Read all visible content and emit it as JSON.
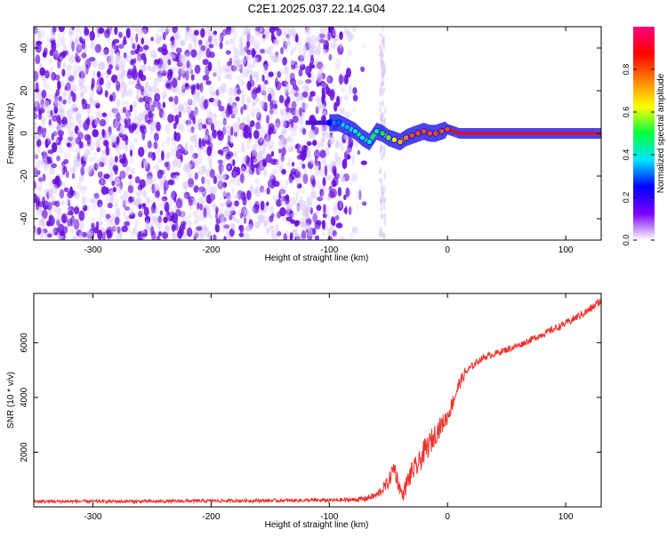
{
  "title": "C2E1.2025.037.22.14.G04",
  "colors": {
    "signal_line": "#f0302a",
    "frame": "#000000",
    "noise_dark": "#6a0fdc",
    "noise_light": "#d8c6f8"
  },
  "chart_data": [
    {
      "id": "spectrogram",
      "type": "heatmap",
      "title": "",
      "xlabel": "Height of straight line (km)",
      "ylabel": "Frequency (Hz)",
      "xlim": [
        -350,
        130
      ],
      "ylim": [
        -50,
        50
      ],
      "xticks": [
        -300,
        -200,
        -100,
        0,
        100
      ],
      "yticks": [
        -40,
        -20,
        0,
        20,
        40
      ],
      "colorbar": {
        "label": "Normalized spectral amplitude",
        "range": [
          0.0,
          1.0
        ],
        "ticks": [
          0.0,
          0.2,
          0.4,
          0.6,
          0.8
        ],
        "tick_labels": [
          "0.0",
          "0.2",
          "0.4",
          "0.6",
          "0.8"
        ],
        "colormap": [
          "#ffffff",
          "#7a00ff",
          "#0000ff",
          "#00e5ff",
          "#00ff40",
          "#ffff00",
          "#ff8000",
          "#ff0000",
          "#ff0080"
        ]
      },
      "noise_region_x": [
        -350,
        -75
      ],
      "ridge": {
        "x": [
          -100,
          -92,
          -85,
          -78,
          -72,
          -66,
          -60,
          -55,
          -50,
          -45,
          -40,
          -35,
          -30,
          -25,
          -20,
          -15,
          -10,
          -5,
          0,
          10,
          30,
          60,
          90,
          130
        ],
        "y": [
          5,
          5,
          3,
          1,
          -2,
          -4,
          1,
          0,
          -2,
          -3,
          -4,
          -2,
          -1,
          0,
          1,
          0,
          0,
          1,
          2,
          0,
          0,
          0,
          0,
          0
        ],
        "amplitude": [
          0.3,
          0.35,
          0.4,
          0.45,
          0.45,
          0.45,
          0.5,
          0.55,
          0.6,
          0.7,
          0.75,
          0.8,
          0.85,
          0.85,
          0.85,
          0.85,
          0.85,
          0.85,
          0.85,
          0.9,
          0.9,
          0.9,
          0.9,
          0.9
        ]
      }
    },
    {
      "id": "snr",
      "type": "line",
      "title": "",
      "xlabel": "Height of straight line (km)",
      "ylabel": "SNR (10 * v/v)",
      "xlim": [
        -350,
        130
      ],
      "ylim": [
        0,
        7800
      ],
      "xticks": [
        -300,
        -200,
        -100,
        0,
        100
      ],
      "yticks": [
        2000,
        4000,
        6000
      ],
      "series": [
        {
          "x": [
            -350,
            -300,
            -250,
            -200,
            -150,
            -100,
            -80,
            -70,
            -60,
            -55,
            -50,
            -45,
            -42,
            -38,
            -35,
            -30,
            -25,
            -20,
            -15,
            -10,
            -5,
            0,
            5,
            10,
            15,
            20,
            25,
            30,
            40,
            50,
            60,
            70,
            80,
            90,
            100,
            110,
            120,
            130
          ],
          "y": [
            200,
            200,
            200,
            220,
            230,
            240,
            260,
            300,
            420,
            650,
            900,
            1500,
            900,
            400,
            800,
            1300,
            1500,
            2000,
            2300,
            2700,
            3000,
            3300,
            3900,
            4500,
            4900,
            5100,
            5300,
            5450,
            5600,
            5750,
            5900,
            6100,
            6300,
            6500,
            6700,
            6950,
            7200,
            7550
          ],
          "noise_amplitude": [
            60,
            60,
            60,
            60,
            60,
            70,
            80,
            100,
            150,
            200,
            250,
            350,
            300,
            200,
            350,
            400,
            400,
            450,
            450,
            400,
            350,
            300,
            300,
            250,
            200,
            150,
            120,
            120,
            120,
            120,
            120,
            120,
            120,
            130,
            130,
            140,
            150,
            160
          ]
        }
      ]
    }
  ]
}
